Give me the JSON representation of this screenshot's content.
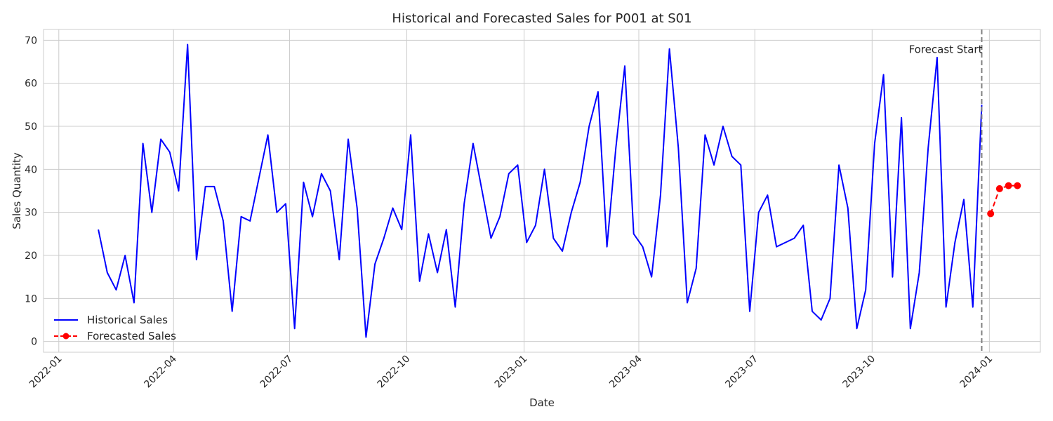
{
  "chart_data": {
    "type": "line",
    "title": "Historical and Forecasted Sales for P001 at S01",
    "xlabel": "Date",
    "ylabel": "Sales Quantity",
    "xlim": [
      "2021-12-20",
      "2024-02-10"
    ],
    "ylim": [
      -2.5,
      72.5
    ],
    "x_ticks": [
      {
        "date": "2022-01-01",
        "label": "2022-01"
      },
      {
        "date": "2022-04-01",
        "label": "2022-04"
      },
      {
        "date": "2022-07-01",
        "label": "2022-07"
      },
      {
        "date": "2022-10-01",
        "label": "2022-10"
      },
      {
        "date": "2023-01-01",
        "label": "2023-01"
      },
      {
        "date": "2023-04-01",
        "label": "2023-04"
      },
      {
        "date": "2023-07-01",
        "label": "2023-07"
      },
      {
        "date": "2023-10-01",
        "label": "2023-10"
      },
      {
        "date": "2024-01-01",
        "label": "2024-01"
      }
    ],
    "y_ticks": [
      0,
      10,
      20,
      30,
      40,
      50,
      60,
      70
    ],
    "grid": true,
    "legend_position": "lower-left",
    "series": [
      {
        "name": "Historical Sales",
        "color": "#0000ff",
        "line_style": "solid",
        "marker": "none",
        "points": [
          [
            "2022-02-01",
            26
          ],
          [
            "2022-02-08",
            16
          ],
          [
            "2022-02-15",
            12
          ],
          [
            "2022-02-22",
            20
          ],
          [
            "2022-03-01",
            9
          ],
          [
            "2022-03-08",
            46
          ],
          [
            "2022-03-15",
            30
          ],
          [
            "2022-03-22",
            47
          ],
          [
            "2022-03-29",
            44
          ],
          [
            "2022-04-05",
            35
          ],
          [
            "2022-04-12",
            69
          ],
          [
            "2022-04-19",
            19
          ],
          [
            "2022-04-26",
            36
          ],
          [
            "2022-05-03",
            36
          ],
          [
            "2022-05-10",
            28
          ],
          [
            "2022-05-17",
            7
          ],
          [
            "2022-05-24",
            29
          ],
          [
            "2022-05-31",
            28
          ],
          [
            "2022-06-07",
            38
          ],
          [
            "2022-06-14",
            48
          ],
          [
            "2022-06-21",
            30
          ],
          [
            "2022-06-28",
            32
          ],
          [
            "2022-07-05",
            3
          ],
          [
            "2022-07-12",
            37
          ],
          [
            "2022-07-19",
            29
          ],
          [
            "2022-07-26",
            39
          ],
          [
            "2022-08-02",
            35
          ],
          [
            "2022-08-09",
            19
          ],
          [
            "2022-08-16",
            47
          ],
          [
            "2022-08-23",
            31
          ],
          [
            "2022-08-30",
            1
          ],
          [
            "2022-09-06",
            18
          ],
          [
            "2022-09-13",
            24
          ],
          [
            "2022-09-20",
            31
          ],
          [
            "2022-09-27",
            26
          ],
          [
            "2022-10-04",
            48
          ],
          [
            "2022-10-11",
            14
          ],
          [
            "2022-10-18",
            25
          ],
          [
            "2022-10-25",
            16
          ],
          [
            "2022-11-01",
            26
          ],
          [
            "2022-11-08",
            8
          ],
          [
            "2022-11-15",
            32
          ],
          [
            "2022-11-22",
            46
          ],
          [
            "2022-11-29",
            35
          ],
          [
            "2022-12-06",
            24
          ],
          [
            "2022-12-13",
            29
          ],
          [
            "2022-12-20",
            39
          ],
          [
            "2022-12-27",
            41
          ],
          [
            "2023-01-03",
            23
          ],
          [
            "2023-01-10",
            27
          ],
          [
            "2023-01-17",
            40
          ],
          [
            "2023-01-24",
            24
          ],
          [
            "2023-01-31",
            21
          ],
          [
            "2023-02-07",
            30
          ],
          [
            "2023-02-14",
            37
          ],
          [
            "2023-02-21",
            50
          ],
          [
            "2023-02-28",
            58
          ],
          [
            "2023-03-07",
            22
          ],
          [
            "2023-03-14",
            45
          ],
          [
            "2023-03-21",
            64
          ],
          [
            "2023-03-28",
            25
          ],
          [
            "2023-04-04",
            22
          ],
          [
            "2023-04-11",
            15
          ],
          [
            "2023-04-18",
            34
          ],
          [
            "2023-04-25",
            68
          ],
          [
            "2023-05-02",
            45
          ],
          [
            "2023-05-09",
            9
          ],
          [
            "2023-05-16",
            17
          ],
          [
            "2023-05-23",
            48
          ],
          [
            "2023-05-30",
            41
          ],
          [
            "2023-06-06",
            50
          ],
          [
            "2023-06-13",
            43
          ],
          [
            "2023-06-20",
            41
          ],
          [
            "2023-06-27",
            7
          ],
          [
            "2023-07-04",
            30
          ],
          [
            "2023-07-11",
            34
          ],
          [
            "2023-07-18",
            22
          ],
          [
            "2023-07-25",
            23
          ],
          [
            "2023-08-01",
            24
          ],
          [
            "2023-08-08",
            27
          ],
          [
            "2023-08-15",
            7
          ],
          [
            "2023-08-22",
            5
          ],
          [
            "2023-08-29",
            10
          ],
          [
            "2023-09-05",
            41
          ],
          [
            "2023-09-12",
            31
          ],
          [
            "2023-09-19",
            3
          ],
          [
            "2023-09-26",
            12
          ],
          [
            "2023-10-03",
            46
          ],
          [
            "2023-10-10",
            62
          ],
          [
            "2023-10-17",
            15
          ],
          [
            "2023-10-24",
            52
          ],
          [
            "2023-10-31",
            3
          ],
          [
            "2023-11-07",
            16
          ],
          [
            "2023-11-14",
            45
          ],
          [
            "2023-11-21",
            66
          ],
          [
            "2023-11-28",
            8
          ],
          [
            "2023-12-05",
            23
          ],
          [
            "2023-12-12",
            33
          ],
          [
            "2023-12-19",
            8
          ],
          [
            "2023-12-26",
            55
          ]
        ]
      },
      {
        "name": "Forecasted Sales",
        "color": "#ff0000",
        "line_style": "dashed",
        "marker": "circle",
        "points": [
          [
            "2024-01-02",
            29.7
          ],
          [
            "2024-01-09",
            35.5
          ],
          [
            "2024-01-16",
            36.2
          ],
          [
            "2024-01-23",
            36.2
          ]
        ]
      }
    ],
    "vline": {
      "date": "2023-12-26",
      "label": "Forecast Start",
      "color": "#808080",
      "line_style": "dashed"
    }
  }
}
